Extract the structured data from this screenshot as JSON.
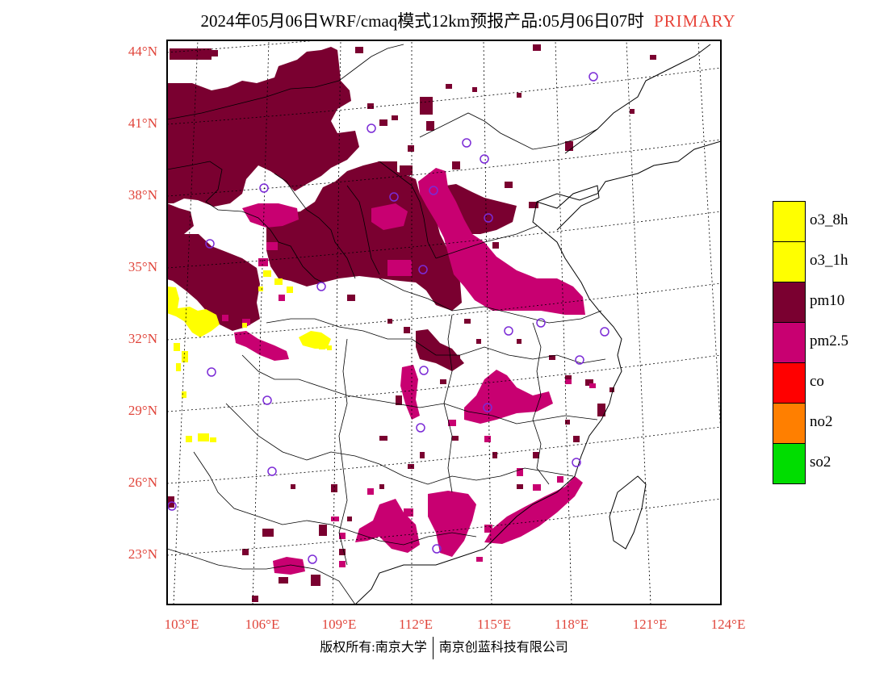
{
  "title": {
    "main": "2024年05月06日WRF/cmaq模式12km预报产品:05月06日07时",
    "tag": "PRIMARY"
  },
  "map": {
    "lat_labels": [
      "44°N",
      "41°N",
      "38°N",
      "35°N",
      "32°N",
      "29°N",
      "26°N",
      "23°N"
    ],
    "lon_labels": [
      "103°E",
      "106°E",
      "109°E",
      "112°E",
      "115°E",
      "118°E",
      "121°E",
      "124°E"
    ]
  },
  "legend": [
    {
      "label": "o3_8h",
      "color": "#ffff00"
    },
    {
      "label": "o3_1h",
      "color": "#ffff00"
    },
    {
      "label": "pm10",
      "color": "#7a0030"
    },
    {
      "label": "pm2.5",
      "color": "#c80071"
    },
    {
      "label": "co",
      "color": "#ff0000"
    },
    {
      "label": "no2",
      "color": "#ff7f00"
    },
    {
      "label": "so2",
      "color": "#00dd00"
    }
  ],
  "footer": {
    "owner": "版权所有:南京大学",
    "developer": "南京创蓝科技有限公司"
  }
}
